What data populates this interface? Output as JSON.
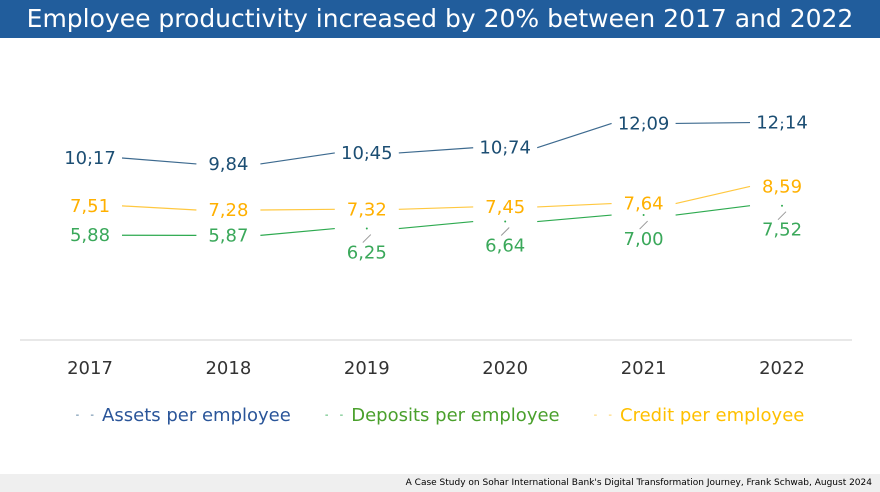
{
  "title": "Employee productivity increased by 20% between 2017 and 2022",
  "footer": "A Case Study on Sohar International Bank's Digital Transformation Journey, Frank Schwab, August 2024",
  "chart_data": {
    "type": "line",
    "categories": [
      "2017",
      "2018",
      "2019",
      "2020",
      "2021",
      "2022"
    ],
    "series": [
      {
        "name": "Assets per employee",
        "values": [
          10.17,
          9.84,
          10.45,
          10.74,
          12.09,
          12.14
        ],
        "labels": [
          "10,17",
          "9,84",
          "10,45",
          "10,74",
          "12,09",
          "12,14"
        ],
        "color": "#1c4e73",
        "line_color": "#3d6a8f",
        "legend_color": "#2a5599"
      },
      {
        "name": "Deposits per employee",
        "values": [
          5.88,
          5.87,
          6.25,
          6.64,
          7.0,
          7.52
        ],
        "labels": [
          "5,88",
          "5,87",
          "6,25",
          "6,64",
          "7,00",
          "7,52"
        ],
        "color": "#3aa85a",
        "line_color": "#2eaa50",
        "legend_color": "#4aa02c"
      },
      {
        "name": "Credit per employee",
        "values": [
          7.51,
          7.28,
          7.32,
          7.45,
          7.64,
          8.59
        ],
        "labels": [
          "7,51",
          "7,28",
          "7,32",
          "7,45",
          "7,64",
          "8,59"
        ],
        "color": "#ffb000",
        "line_color": "#ffc840",
        "legend_color": "#ffc000"
      }
    ],
    "legend_position": "bottom",
    "grid": false,
    "data_labels": true
  }
}
